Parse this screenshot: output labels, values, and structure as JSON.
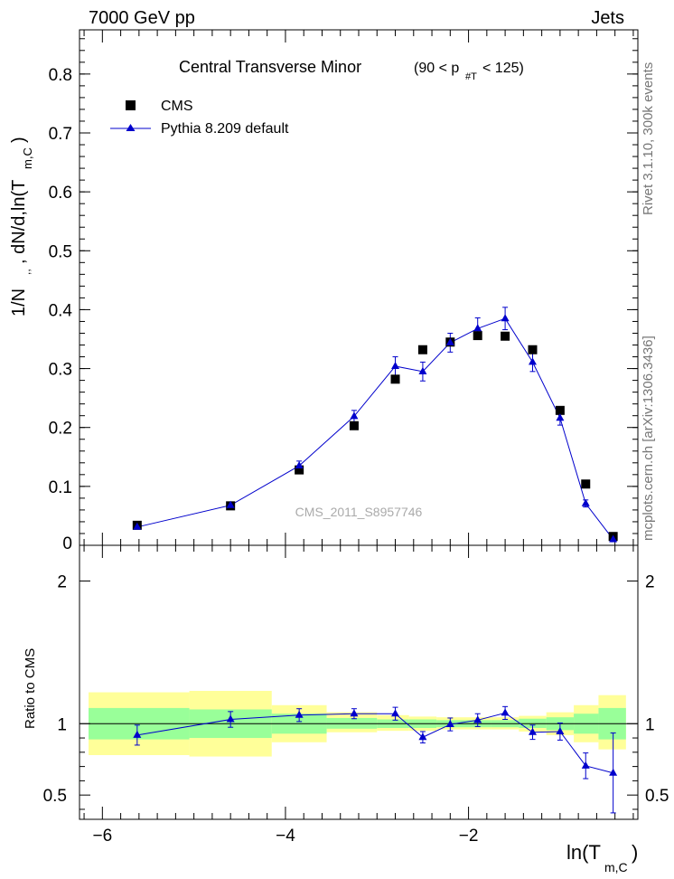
{
  "header": {
    "energy_label": "7000 GeV pp",
    "process_label": "Jets"
  },
  "side_labels": {
    "rivet": "Rivet 3.1.10,  300k events",
    "mcplots": "mcplots.cern.ch [arXiv:1306.3436]"
  },
  "chart_data": [
    {
      "type": "scatter",
      "panel": "main",
      "title": "Central Transverse Minor",
      "title_cut": "(90 < p",
      "title_cut_sub": "#T",
      "title_cut_end": " < 125)",
      "ylabel": "1/N",
      "ylabel_rest": ", dN/d,ln(T",
      "ylabel_sub": "m,C",
      "ylabel_end": ")",
      "ylabel_dots": ",,",
      "watermark": "CMS_2011_S8957746",
      "xlim": [
        -6.25,
        -0.15
      ],
      "ylim": [
        0,
        0.875
      ],
      "yticks": [
        0.1,
        0.2,
        0.3,
        0.4,
        0.5,
        0.6,
        0.7,
        0.8
      ],
      "ytick_labels": [
        "0.1",
        "0.2",
        "0.3",
        "0.4",
        "0.5",
        "0.6",
        "0.7",
        "0.8"
      ],
      "y0_label": "0",
      "legend_placement": "top-left",
      "series": [
        {
          "name": "CMS",
          "marker": "square",
          "color": "#000000",
          "x": [
            -5.62,
            -4.6,
            -3.85,
            -3.25,
            -2.8,
            -2.5,
            -2.2,
            -1.9,
            -1.6,
            -1.3,
            -1.0,
            -0.72,
            -0.42
          ],
          "y": [
            0.034,
            0.067,
            0.128,
            0.203,
            0.282,
            0.332,
            0.345,
            0.356,
            0.355,
            0.332,
            0.229,
            0.104,
            0.015
          ]
        },
        {
          "name": "Pythia 8.209 default",
          "marker": "triangle",
          "color": "#0000cc",
          "x": [
            -5.62,
            -4.6,
            -3.85,
            -3.25,
            -2.8,
            -2.5,
            -2.2,
            -1.9,
            -1.6,
            -1.3,
            -1.0,
            -0.72,
            -0.42
          ],
          "y": [
            0.031,
            0.068,
            0.135,
            0.219,
            0.304,
            0.295,
            0.344,
            0.368,
            0.385,
            0.311,
            0.216,
            0.071,
            0.01
          ],
          "yerr": [
            0.003,
            0.004,
            0.008,
            0.01,
            0.016,
            0.016,
            0.016,
            0.018,
            0.019,
            0.016,
            0.012,
            0.006,
            0.004
          ]
        }
      ]
    },
    {
      "type": "line",
      "panel": "ratio",
      "ylabel": "Ratio to CMS",
      "xlabel": "ln(T",
      "xlabel_sub": "m,C",
      "xlabel_end": ")",
      "xlim": [
        -6.25,
        -0.15
      ],
      "ylim": [
        0.33,
        2.25
      ],
      "yticks": [
        0.5,
        1,
        2
      ],
      "ytick_labels": [
        "0.5",
        "1",
        "2"
      ],
      "xticks": [
        -6,
        -4,
        -2
      ],
      "xtick_labels": [
        "−6",
        "−4",
        "−2"
      ],
      "bands": {
        "edges": [
          -6.25,
          -5.05,
          -4.15,
          -3.55,
          -3.0,
          -2.65,
          -2.35,
          -2.05,
          -1.75,
          -1.45,
          -1.15,
          -0.85,
          -0.58,
          -0.28
        ],
        "inner_lo": [
          0.89,
          0.9,
          0.93,
          0.965,
          0.97,
          0.97,
          0.975,
          0.975,
          0.975,
          0.97,
          0.955,
          0.93,
          0.89
        ],
        "inner_hi": [
          1.11,
          1.1,
          1.07,
          1.04,
          1.03,
          1.03,
          1.025,
          1.025,
          1.025,
          1.035,
          1.045,
          1.07,
          1.11
        ],
        "outer_lo": [
          0.78,
          0.77,
          0.87,
          0.94,
          0.95,
          0.95,
          0.96,
          0.96,
          0.96,
          0.945,
          0.92,
          0.87,
          0.82
        ],
        "outer_hi": [
          1.22,
          1.23,
          1.13,
          1.08,
          1.06,
          1.05,
          1.045,
          1.045,
          1.045,
          1.055,
          1.08,
          1.13,
          1.2
        ]
      },
      "series": [
        {
          "name": "Pythia 8.209 default",
          "color": "#0000cc",
          "x": [
            -5.62,
            -4.6,
            -3.85,
            -3.25,
            -2.8,
            -2.5,
            -2.2,
            -1.9,
            -1.6,
            -1.3,
            -1.0,
            -0.72,
            -0.42
          ],
          "y": [
            0.92,
            1.03,
            1.06,
            1.07,
            1.07,
            0.905,
            0.995,
            1.025,
            1.075,
            0.94,
            0.945,
            0.705,
            0.655
          ],
          "yerr": [
            0.07,
            0.055,
            0.045,
            0.035,
            0.045,
            0.04,
            0.045,
            0.045,
            0.045,
            0.05,
            0.06,
            0.09,
            0.28
          ]
        }
      ]
    }
  ]
}
